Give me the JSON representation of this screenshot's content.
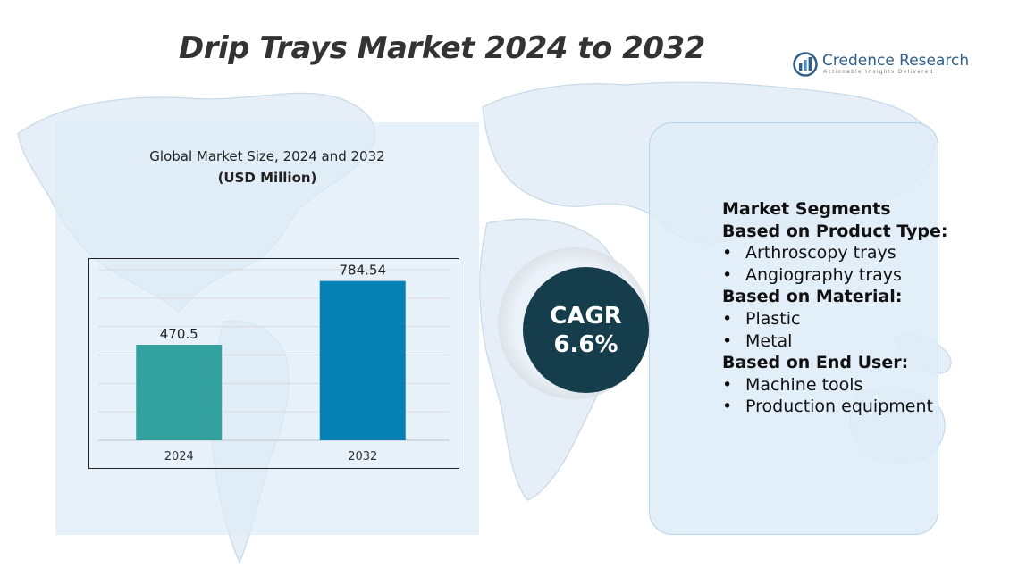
{
  "title": "Drip Trays Market 2024 to 2032",
  "logo": {
    "name": "Credence Research",
    "tagline": "Actionable Insights Delivered",
    "icon": "bar-chart-circle-icon",
    "color": "#2f5f8a"
  },
  "chart_panel": {
    "title": "Global Market Size, 2024 and 2032",
    "unit": "(USD Million)"
  },
  "chart_data": {
    "type": "bar",
    "categories": [
      "2024",
      "2032"
    ],
    "values": [
      470.5,
      784.54
    ],
    "data_labels": [
      "470.5",
      "784.54"
    ],
    "colors": [
      "#33a29f",
      "#0681b4"
    ],
    "title": "Global Market Size, 2024 and 2032",
    "ylabel": "(USD Million)",
    "ylim": [
      0,
      840
    ],
    "grid": true,
    "legend": "none"
  },
  "cagr": {
    "label": "CAGR",
    "value": "6.6%",
    "color": "#163d4b"
  },
  "segments": {
    "heading": "Market Segments",
    "groups": [
      {
        "heading": "Based on Product Type:",
        "items": [
          "Arthroscopy trays",
          "Angiography trays"
        ]
      },
      {
        "heading": "Based on Material:",
        "items": [
          "Plastic",
          "Metal"
        ]
      },
      {
        "heading": "Based on End User:",
        "items": [
          "Machine tools",
          "Production equipment"
        ]
      }
    ],
    "bullet": "•"
  },
  "colors": {
    "panel_bg": "#deecf7",
    "map": "#c9dcea"
  }
}
